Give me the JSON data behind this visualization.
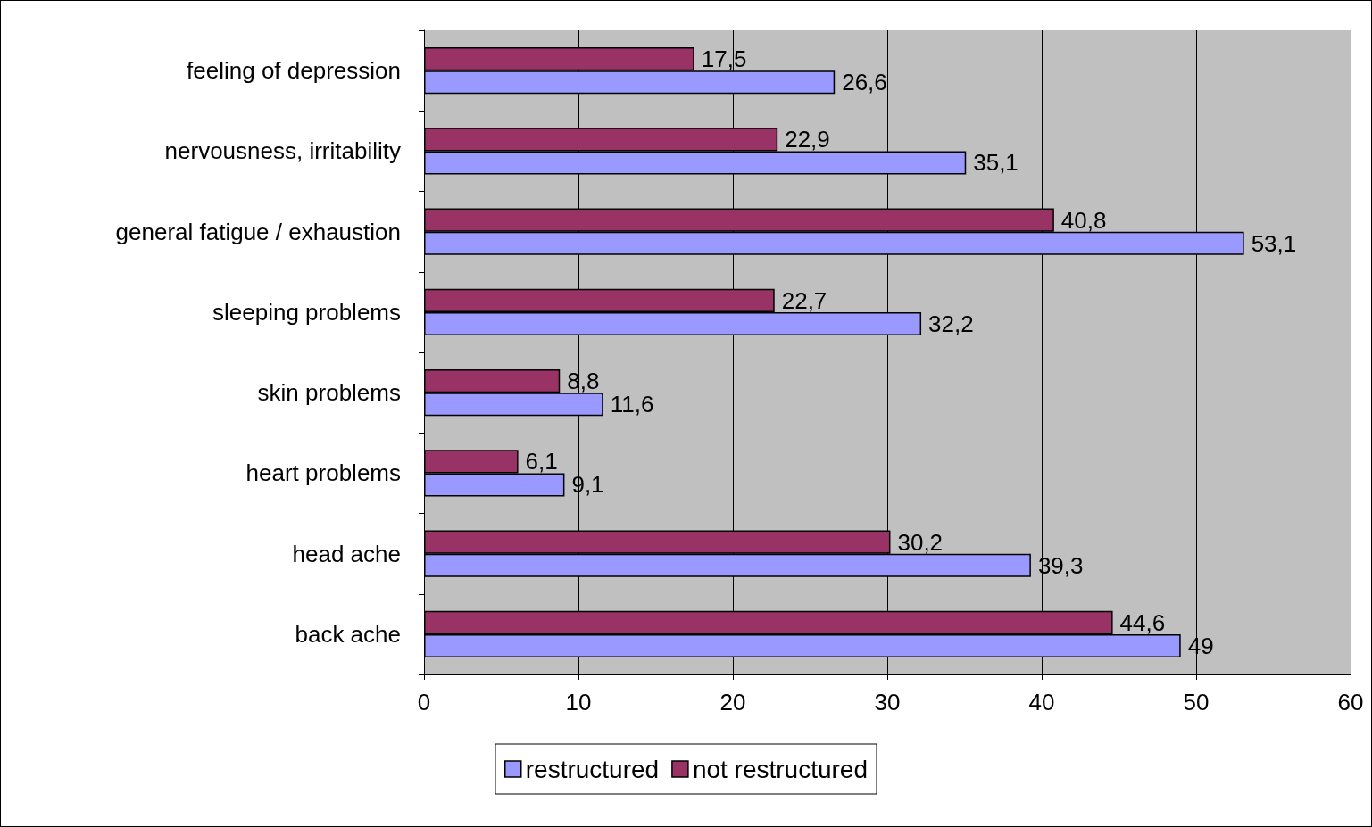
{
  "chart_data": {
    "type": "bar",
    "orientation": "horizontal",
    "categories": [
      "feeling of depression",
      "nervousness, irritability",
      "general fatigue / exhaustion",
      "sleeping problems",
      "skin problems",
      "heart problems",
      "head ache",
      "back ache"
    ],
    "series": [
      {
        "name": "restructured",
        "color": "#9999ff",
        "values": [
          26.6,
          35.1,
          53.1,
          32.2,
          11.6,
          9.1,
          39.3,
          49
        ],
        "value_labels": [
          "26,6",
          "35,1",
          "53,1",
          "32,2",
          "11,6",
          "9,1",
          "39,3",
          "49"
        ]
      },
      {
        "name": "not restructured",
        "color": "#993366",
        "values": [
          17.5,
          22.9,
          40.8,
          22.7,
          8.8,
          6.1,
          30.2,
          44.6
        ],
        "value_labels": [
          "17,5",
          "22,9",
          "40,8",
          "22,7",
          "8,8",
          "6,1",
          "30,2",
          "44,6"
        ]
      }
    ],
    "xlim": [
      0,
      60
    ],
    "xticks": [
      0,
      10,
      20,
      30,
      40,
      50,
      60
    ],
    "grid": "x",
    "legend": "bottom"
  }
}
